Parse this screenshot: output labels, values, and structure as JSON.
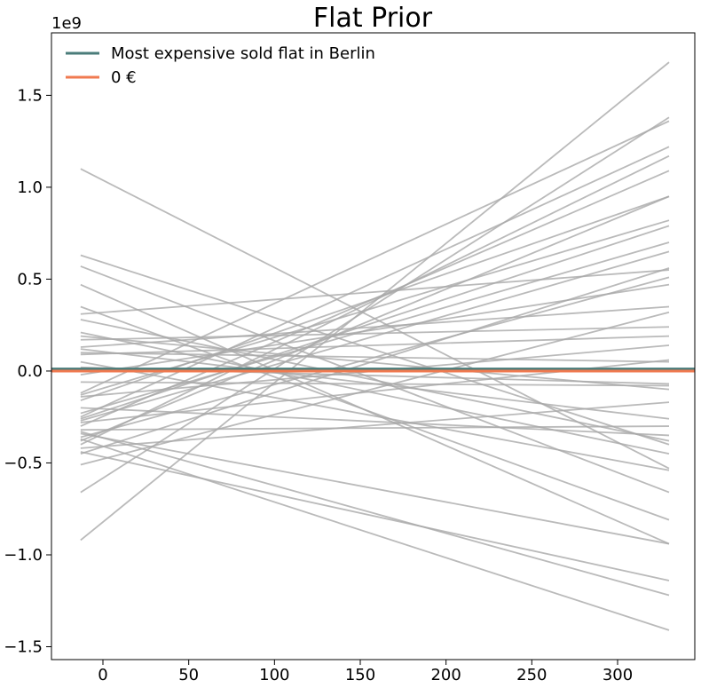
{
  "chart_data": {
    "type": "line",
    "title": "Flat Prior",
    "xlabel": "",
    "ylabel": "",
    "y_offset_text": "1e9",
    "xlim": [
      -30,
      345
    ],
    "ylim": [
      -1.57,
      1.84
    ],
    "y_scale": 1000000000,
    "xticks": [
      0,
      50,
      100,
      150,
      200,
      250,
      300
    ],
    "xtick_labels": [
      "0",
      "50",
      "100",
      "150",
      "200",
      "250",
      "300"
    ],
    "yticks": [
      -1.5,
      -1.0,
      -0.5,
      0.0,
      0.5,
      1.0,
      1.5
    ],
    "ytick_labels": [
      "−1.5",
      "−1.0",
      "−0.5",
      "0.0",
      "0.5",
      "1.0",
      "1.5"
    ],
    "grid": false,
    "legend": {
      "placement": "top-left",
      "entries": [
        {
          "label": "Most expensive sold flat in Berlin",
          "color": "#4a7c7a"
        },
        {
          "label": "0 €",
          "color": "#f07a50"
        }
      ]
    },
    "reference_lines": [
      {
        "name": "Most expensive sold flat in Berlin",
        "y": 0.0115,
        "color": "#4a7c7a"
      },
      {
        "name": "0 €",
        "y": 0.0,
        "color": "#f07a50"
      }
    ],
    "prior_line_color": "#a9a9a9",
    "x_start": -13,
    "x_end": 330,
    "prior_lines": [
      [
        1.1,
        -0.53
      ],
      [
        -0.92,
        1.68
      ],
      [
        -0.66,
        1.38
      ],
      [
        0.63,
        -0.4
      ],
      [
        0.57,
        -0.66
      ],
      [
        0.47,
        -0.94
      ],
      [
        0.35,
        -0.81
      ],
      [
        0.31,
        0.55
      ],
      [
        0.28,
        -0.38
      ],
      [
        0.21,
        -0.45
      ],
      [
        0.19,
        -0.1
      ],
      [
        0.17,
        0.24
      ],
      [
        0.13,
        0.35
      ],
      [
        0.12,
        -0.26
      ],
      [
        0.09,
        0.19
      ],
      [
        0.05,
        -0.54
      ],
      [
        0.02,
        -0.07
      ],
      [
        -0.02,
        0.47
      ],
      [
        -0.06,
        -0.08
      ],
      [
        -0.12,
        1.36
      ],
      [
        -0.14,
        0.14
      ],
      [
        -0.16,
        0.95
      ],
      [
        -0.2,
        -0.35
      ],
      [
        -0.23,
        0.7
      ],
      [
        -0.25,
        1.22
      ],
      [
        -0.26,
        0.79
      ],
      [
        -0.28,
        0.06
      ],
      [
        -0.3,
        1.09
      ],
      [
        -0.32,
        -0.3
      ],
      [
        -0.33,
        -1.22
      ],
      [
        -0.34,
        -0.94
      ],
      [
        -0.36,
        0.51
      ],
      [
        -0.38,
        0.95
      ],
      [
        -0.4,
        1.17
      ],
      [
        -0.42,
        -0.17
      ],
      [
        -0.45,
        0.56
      ],
      [
        -0.51,
        0.32
      ],
      [
        -0.37,
        -1.41
      ],
      [
        -0.44,
        -1.14
      ],
      [
        -0.13,
        0.82
      ],
      [
        -0.27,
        0.65
      ],
      [
        0.1,
        0.05
      ]
    ]
  }
}
